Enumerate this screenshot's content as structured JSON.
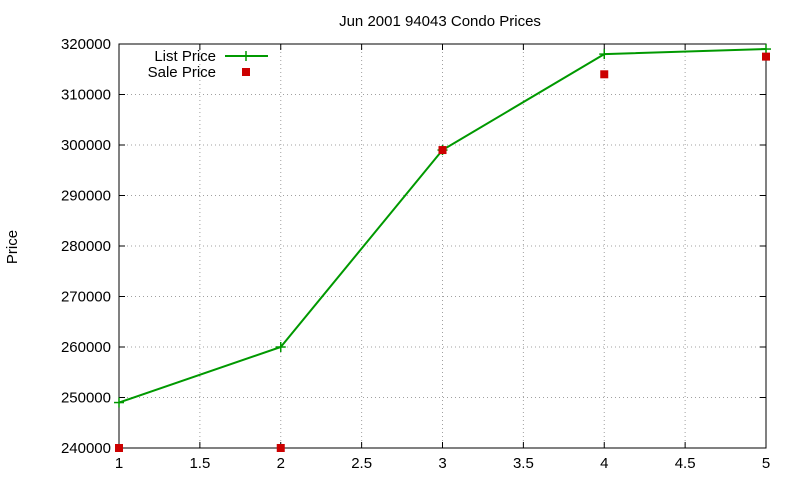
{
  "chart_data": {
    "type": "line",
    "title": "Jun 2001 94043 Condo Prices",
    "xlabel": "",
    "ylabel": "Price",
    "xlim": [
      1,
      5
    ],
    "ylim": [
      240000,
      320000
    ],
    "xticks": [
      "1",
      "1.5",
      "2",
      "2.5",
      "3",
      "3.5",
      "4",
      "4.5",
      "5"
    ],
    "xtick_values": [
      1,
      1.5,
      2,
      2.5,
      3,
      3.5,
      4,
      4.5,
      5
    ],
    "yticks": [
      "240000",
      "250000",
      "260000",
      "270000",
      "280000",
      "290000",
      "300000",
      "310000",
      "320000"
    ],
    "ytick_values": [
      240000,
      250000,
      260000,
      270000,
      280000,
      290000,
      300000,
      310000,
      320000
    ],
    "grid": true,
    "legend_position": "top-left",
    "series": [
      {
        "name": "List Price",
        "style": "line-plus",
        "color": "#009900",
        "x": [
          1,
          2,
          3,
          4,
          5
        ],
        "y": [
          249000,
          260000,
          299000,
          318000,
          319000
        ]
      },
      {
        "name": "Sale Price",
        "style": "square",
        "color": "#cc0000",
        "x": [
          1,
          2,
          3,
          4,
          5
        ],
        "y": [
          240000,
          240000,
          299000,
          314000,
          317500
        ]
      }
    ]
  }
}
